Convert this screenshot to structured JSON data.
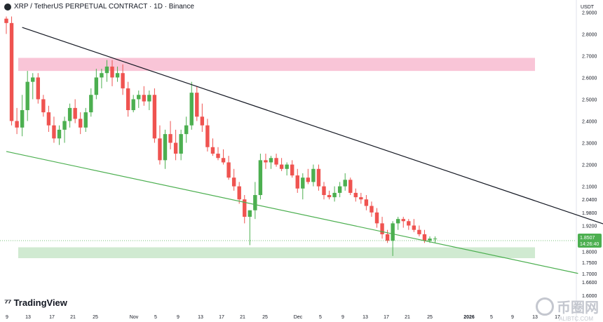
{
  "header": {
    "title": "XRP / TetherUS PERPETUAL CONTRACT · 1D · Binance"
  },
  "currency": "USDT",
  "brand": "TradingView",
  "watermark": {
    "text": "币圈网",
    "sub": "ALIBTC.COM"
  },
  "price_label": {
    "price": "1.8507",
    "countdown": "14:26:40"
  },
  "colors": {
    "up": "#4caf50",
    "down": "#ef5350",
    "resistance_zone": "#f8bbd0",
    "support_zone": "#c8e6c9",
    "trendline_upper": "#131722",
    "trendline_lower": "#4caf50"
  },
  "chart_data": {
    "type": "candlestick",
    "y_ticks": [
      "2.9000",
      "2.8000",
      "2.7000",
      "2.6000",
      "2.5000",
      "2.4000",
      "2.3000",
      "2.2000",
      "2.1000",
      "2.0400",
      "1.9800",
      "1.9200",
      "1.8000",
      "1.7500",
      "1.7000",
      "1.6600",
      "1.6000"
    ],
    "x_ticks": [
      "9",
      "13",
      "17",
      "21",
      "25",
      "Nov",
      "5",
      "9",
      "13",
      "17",
      "21",
      "25",
      "Dec",
      "5",
      "9",
      "13",
      "17",
      "21",
      "25",
      "2026",
      "5",
      "9",
      "13",
      "17"
    ],
    "zones": [
      {
        "name": "resistance",
        "from": 2.63,
        "to": 2.69
      },
      {
        "name": "support",
        "from": 1.77,
        "to": 1.82
      }
    ],
    "trendlines": [
      {
        "name": "upper",
        "from": [
          3,
          2.83
        ],
        "to": [
          121,
          1.86
        ]
      },
      {
        "name": "lower",
        "from": [
          0,
          2.26
        ],
        "to": [
          108,
          1.7
        ]
      }
    ],
    "candles": [
      [
        2.87,
        2.88,
        2.8,
        2.85
      ],
      [
        2.85,
        2.88,
        2.38,
        2.4
      ],
      [
        2.4,
        2.46,
        2.34,
        2.37
      ],
      [
        2.37,
        2.52,
        2.33,
        2.45
      ],
      [
        2.45,
        2.63,
        2.4,
        2.58
      ],
      [
        2.58,
        2.62,
        2.5,
        2.6
      ],
      [
        2.6,
        2.62,
        2.48,
        2.5
      ],
      [
        2.5,
        2.52,
        2.42,
        2.44
      ],
      [
        2.44,
        2.47,
        2.35,
        2.38
      ],
      [
        2.38,
        2.42,
        2.3,
        2.32
      ],
      [
        2.32,
        2.38,
        2.29,
        2.36
      ],
      [
        2.36,
        2.42,
        2.3,
        2.4
      ],
      [
        2.4,
        2.48,
        2.37,
        2.46
      ],
      [
        2.46,
        2.5,
        2.39,
        2.41
      ],
      [
        2.41,
        2.44,
        2.34,
        2.37
      ],
      [
        2.37,
        2.46,
        2.35,
        2.44
      ],
      [
        2.44,
        2.55,
        2.42,
        2.52
      ],
      [
        2.52,
        2.64,
        2.5,
        2.6
      ],
      [
        2.6,
        2.64,
        2.55,
        2.62
      ],
      [
        2.62,
        2.68,
        2.58,
        2.65
      ],
      [
        2.65,
        2.68,
        2.56,
        2.6
      ],
      [
        2.6,
        2.65,
        2.58,
        2.62
      ],
      [
        2.62,
        2.66,
        2.52,
        2.55
      ],
      [
        2.55,
        2.58,
        2.42,
        2.45
      ],
      [
        2.45,
        2.52,
        2.44,
        2.5
      ],
      [
        2.5,
        2.54,
        2.46,
        2.52
      ],
      [
        2.52,
        2.56,
        2.47,
        2.49
      ],
      [
        2.49,
        2.54,
        2.45,
        2.52
      ],
      [
        2.52,
        2.55,
        2.3,
        2.32
      ],
      [
        2.32,
        2.38,
        2.2,
        2.22
      ],
      [
        2.22,
        2.36,
        2.18,
        2.34
      ],
      [
        2.34,
        2.4,
        2.27,
        2.3
      ],
      [
        2.3,
        2.36,
        2.22,
        2.25
      ],
      [
        2.25,
        2.36,
        2.22,
        2.34
      ],
      [
        2.34,
        2.42,
        2.3,
        2.38
      ],
      [
        2.38,
        2.58,
        2.36,
        2.53
      ],
      [
        2.53,
        2.56,
        2.4,
        2.42
      ],
      [
        2.42,
        2.48,
        2.35,
        2.38
      ],
      [
        2.38,
        2.41,
        2.26,
        2.28
      ],
      [
        2.28,
        2.32,
        2.24,
        2.25
      ],
      [
        2.25,
        2.28,
        2.22,
        2.23
      ],
      [
        2.23,
        2.27,
        2.2,
        2.21
      ],
      [
        2.21,
        2.24,
        2.13,
        2.14
      ],
      [
        2.14,
        2.18,
        2.08,
        2.1
      ],
      [
        2.1,
        2.12,
        2.02,
        2.04
      ],
      [
        2.04,
        2.06,
        1.93,
        1.96
      ],
      [
        1.96,
        1.99,
        1.83,
        1.99
      ],
      [
        1.99,
        2.12,
        1.95,
        2.06
      ],
      [
        2.06,
        2.25,
        2.04,
        2.22
      ],
      [
        2.22,
        2.25,
        2.18,
        2.21
      ],
      [
        2.21,
        2.24,
        2.18,
        2.23
      ],
      [
        2.23,
        2.25,
        2.19,
        2.2
      ],
      [
        2.2,
        2.23,
        2.17,
        2.18
      ],
      [
        2.18,
        2.21,
        2.15,
        2.2
      ],
      [
        2.2,
        2.22,
        2.14,
        2.15
      ],
      [
        2.15,
        2.18,
        2.07,
        2.09
      ],
      [
        2.09,
        2.16,
        2.04,
        2.14
      ],
      [
        2.14,
        2.18,
        2.11,
        2.12
      ],
      [
        2.12,
        2.2,
        2.1,
        2.18
      ],
      [
        2.18,
        2.2,
        2.08,
        2.1
      ],
      [
        2.1,
        2.12,
        2.04,
        2.06
      ],
      [
        2.06,
        2.08,
        2.04,
        2.05
      ],
      [
        2.05,
        2.1,
        2.03,
        2.07
      ],
      [
        2.07,
        2.12,
        2.05,
        2.1
      ],
      [
        2.1,
        2.16,
        2.08,
        2.13
      ],
      [
        2.13,
        2.14,
        2.06,
        2.07
      ],
      [
        2.07,
        2.09,
        2.03,
        2.05
      ],
      [
        2.05,
        2.07,
        2.02,
        2.04
      ],
      [
        2.04,
        2.06,
        1.99,
        2.01
      ],
      [
        2.01,
        2.03,
        1.96,
        1.98
      ],
      [
        1.98,
        2.0,
        1.91,
        1.93
      ],
      [
        1.93,
        1.96,
        1.86,
        1.88
      ],
      [
        1.88,
        1.9,
        1.84,
        1.85
      ],
      [
        1.85,
        1.94,
        1.78,
        1.93
      ],
      [
        1.93,
        1.96,
        1.9,
        1.95
      ],
      [
        1.95,
        1.96,
        1.91,
        1.94
      ],
      [
        1.94,
        1.95,
        1.9,
        1.92
      ],
      [
        1.92,
        1.95,
        1.89,
        1.9
      ],
      [
        1.9,
        1.92,
        1.87,
        1.88
      ],
      [
        1.88,
        1.9,
        1.84,
        1.85
      ],
      [
        1.85,
        1.87,
        1.84,
        1.86
      ],
      [
        1.86,
        1.87,
        1.84,
        1.86
      ]
    ]
  }
}
